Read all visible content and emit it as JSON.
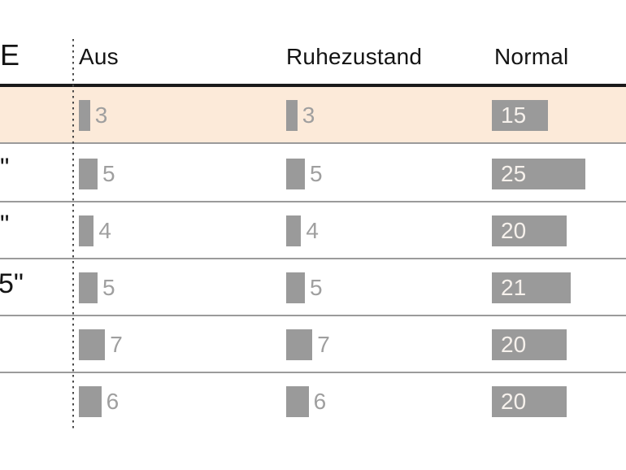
{
  "colors": {
    "highlight_row": "#fcead9",
    "bar": "#9a9a9a",
    "value_label_outside": "#9f9f9f",
    "value_label_inside": "#f6f1ec",
    "header_text": "#141414",
    "row_separator": "#9b9b9b",
    "header_rule": "#1a1a1a"
  },
  "table": {
    "corner_fragment": "E",
    "column_headers": [
      "Aus",
      "Ruhezustand",
      "Normal"
    ],
    "row_label_fragments": [
      "\"",
      "\"",
      "\"",
      "5\"",
      "",
      ""
    ],
    "highlighted_row_index": 0
  },
  "chart_data": {
    "type": "bar",
    "orientation": "horizontal",
    "title": "",
    "categories": [
      "\"",
      "\"",
      "\"",
      "5\"",
      "",
      ""
    ],
    "series": [
      {
        "name": "Aus",
        "values": [
          3,
          5,
          4,
          5,
          7,
          6
        ]
      },
      {
        "name": "Ruhezustand",
        "values": [
          3,
          5,
          4,
          5,
          7,
          6
        ]
      },
      {
        "name": "Normal",
        "values": [
          15,
          25,
          20,
          21,
          20,
          20
        ]
      }
    ],
    "value_labels_shown": true,
    "highlighted_row_index": 0,
    "axis_shown": false,
    "legend_position": "column-headers"
  }
}
